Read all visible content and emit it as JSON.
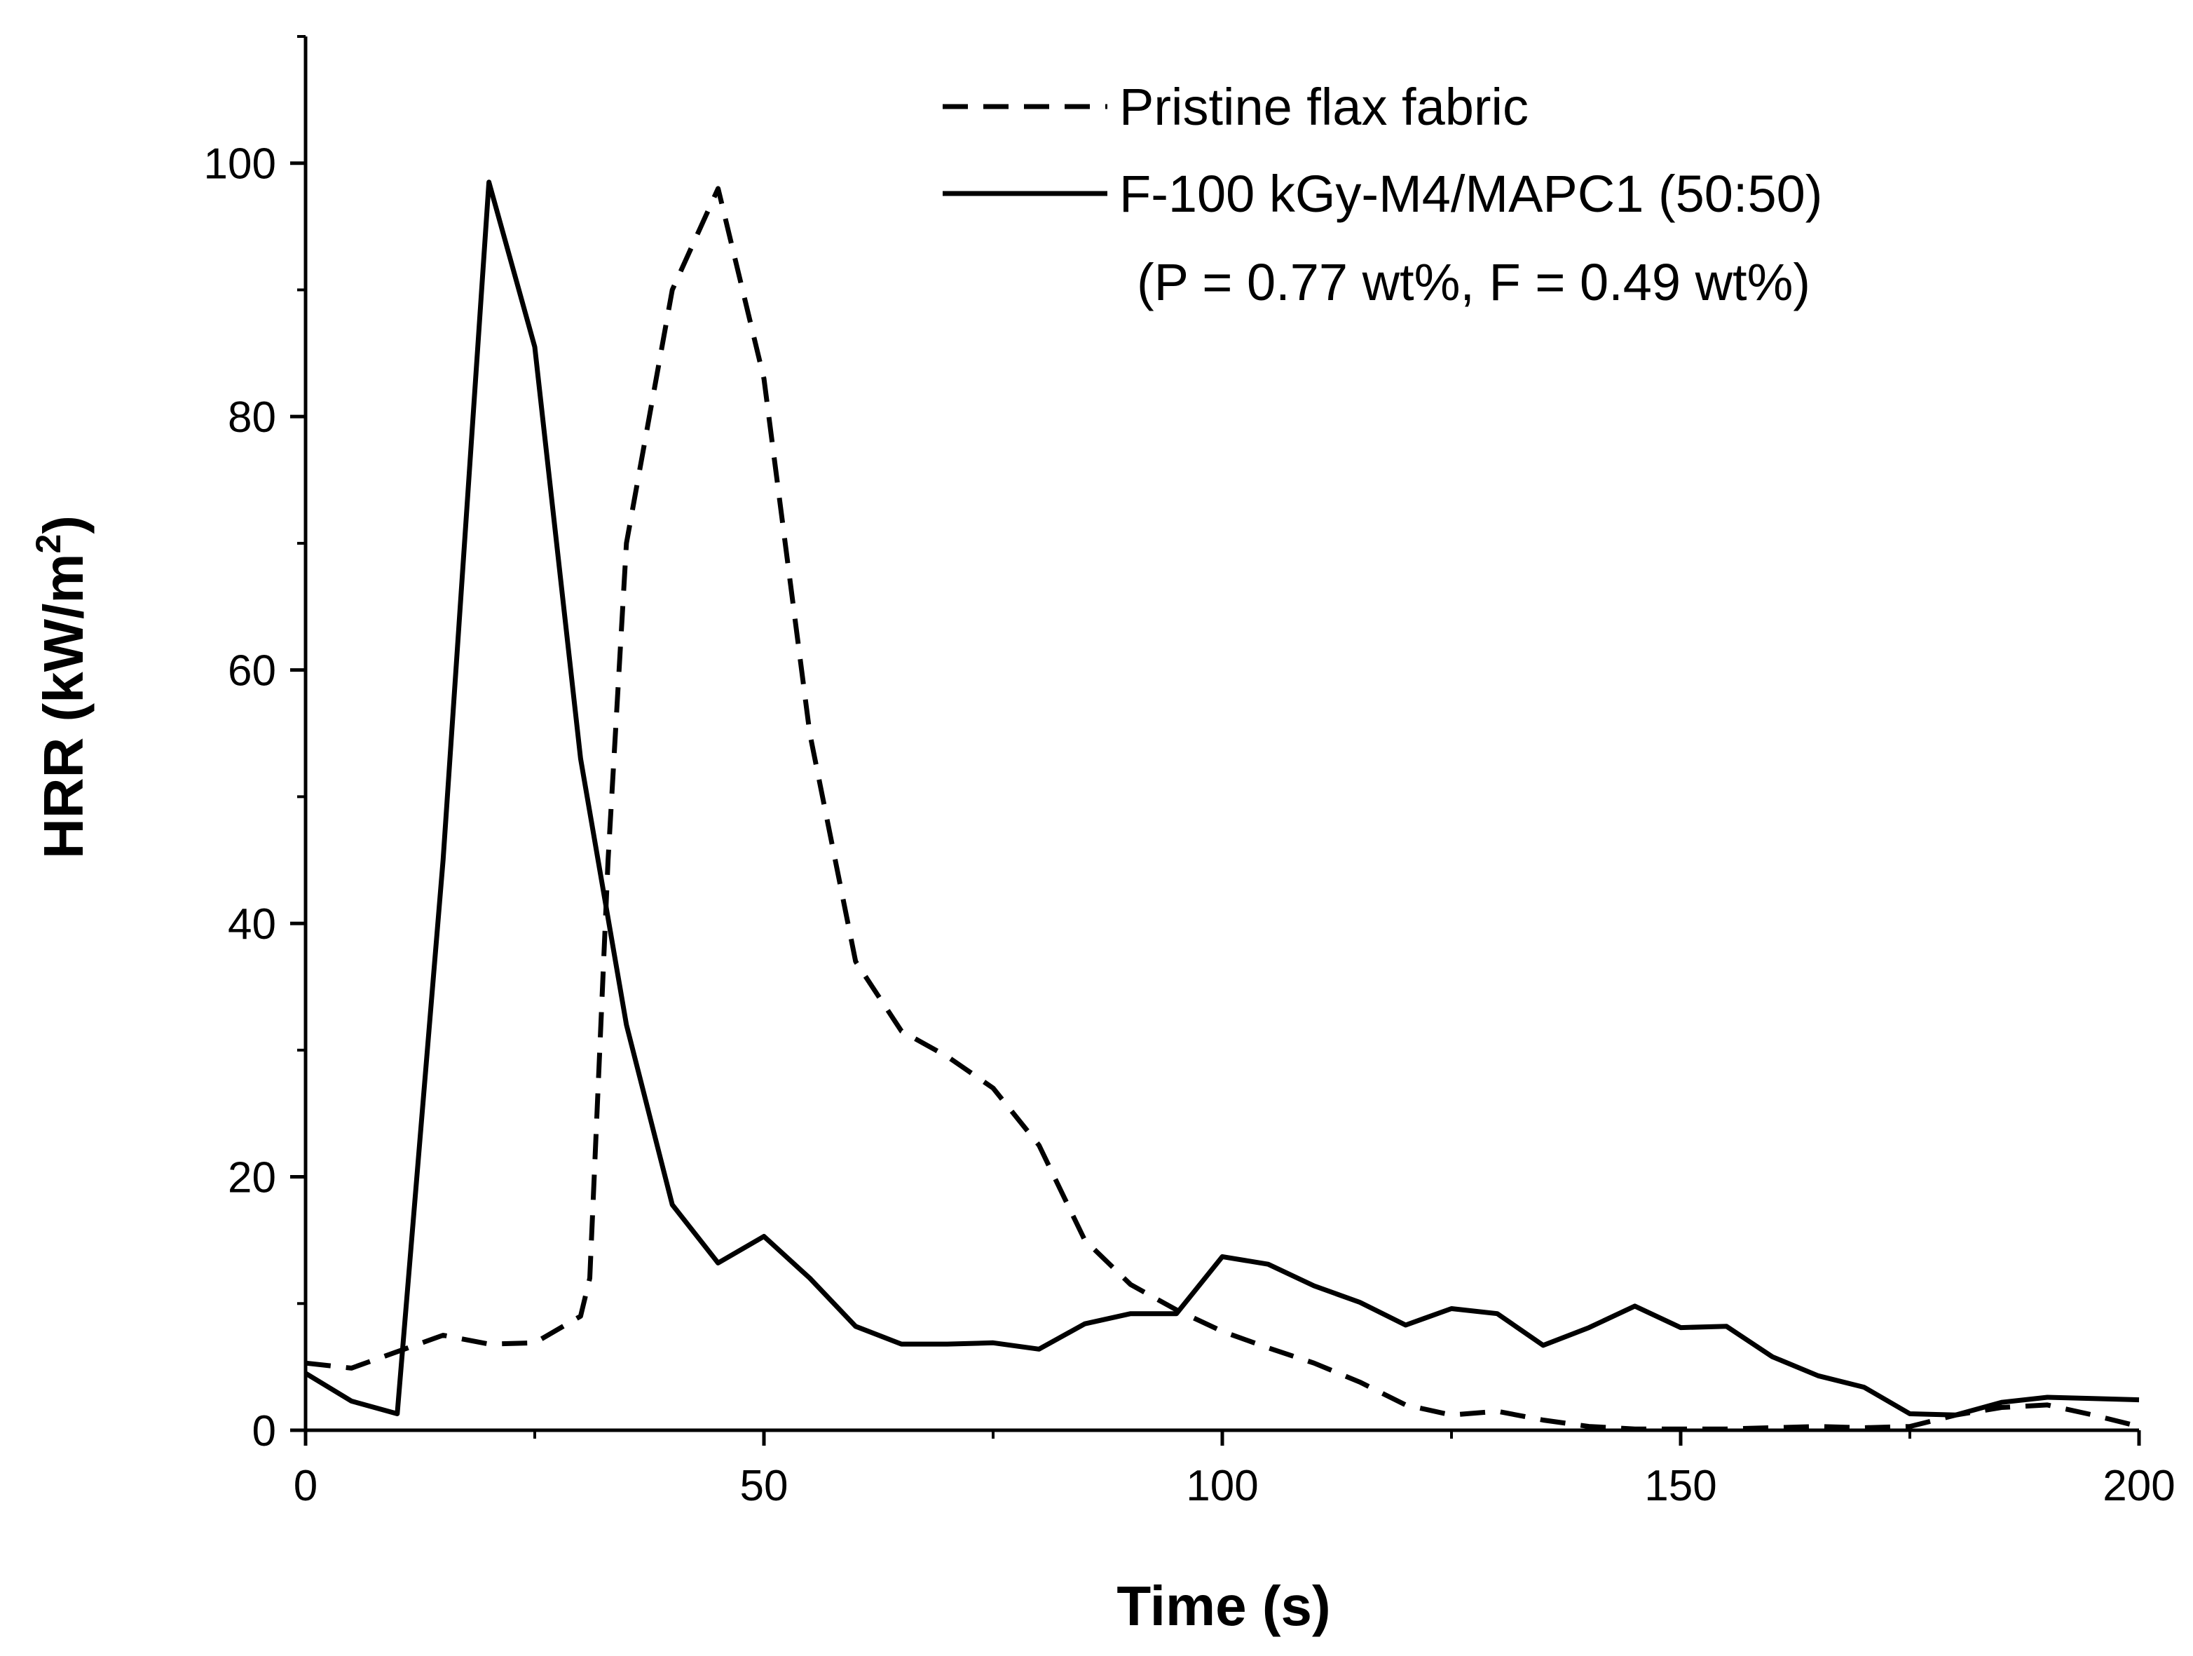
{
  "chart_data": {
    "type": "line",
    "title": "",
    "xlabel": "Time (s)",
    "ylabel": "HRR (kW/m",
    "ylabel_sup": "2",
    "ylabel_close": ")",
    "xlim": [
      0,
      200
    ],
    "ylim": [
      0,
      110
    ],
    "xticks": [
      "0",
      "50",
      "100",
      "150",
      "200"
    ],
    "yticks": [
      "0",
      "20",
      "40",
      "60",
      "80",
      "100"
    ],
    "grid": false,
    "legend_position": "top-right",
    "legend_subtitle": "(P = 0.77 wt%, F = 0.49 wt%)",
    "series": [
      {
        "name": "Pristine flax fabric",
        "style": "dashed",
        "color": "#000000",
        "x": [
          0,
          5,
          10,
          15,
          20,
          25,
          30,
          31,
          33,
          35,
          40,
          45,
          50,
          55,
          60,
          65,
          70,
          75,
          80,
          85,
          90,
          95,
          100,
          105,
          110,
          115,
          120,
          125,
          130,
          135,
          140,
          145,
          150,
          155,
          160,
          165,
          170,
          175,
          180,
          185,
          190,
          195,
          200
        ],
        "y": [
          5.3,
          4.9,
          6.2,
          7.5,
          6.8,
          6.9,
          9.0,
          12.0,
          45.0,
          70.0,
          90.0,
          98.0,
          83.0,
          55.0,
          37.0,
          31.5,
          29.5,
          27.0,
          22.5,
          15.0,
          11.5,
          9.5,
          7.8,
          6.5,
          5.3,
          3.8,
          2.0,
          1.2,
          1.5,
          0.8,
          0.3,
          0.1,
          0.1,
          0.1,
          0.2,
          0.3,
          0.2,
          0.3,
          1.2,
          1.8,
          2.0,
          1.2,
          0.3
        ]
      },
      {
        "name": "F-100 kGy-M4/MAPC1 (50:50)",
        "style": "solid",
        "color": "#000000",
        "x": [
          0,
          5,
          10,
          15,
          20,
          25,
          30,
          35,
          40,
          45,
          50,
          55,
          60,
          65,
          70,
          75,
          80,
          85,
          90,
          95,
          100,
          105,
          110,
          115,
          120,
          125,
          130,
          135,
          140,
          145,
          150,
          155,
          160,
          165,
          170,
          175,
          180,
          185,
          190,
          195,
          200
        ],
        "y": [
          4.5,
          2.3,
          1.3,
          45.0,
          98.5,
          85.5,
          53.0,
          32.0,
          17.8,
          13.2,
          15.3,
          12.0,
          8.2,
          6.8,
          6.8,
          6.9,
          6.4,
          8.4,
          9.2,
          9.2,
          13.7,
          13.1,
          11.4,
          10.1,
          8.3,
          9.6,
          9.2,
          6.7,
          8.1,
          9.8,
          8.1,
          8.2,
          5.8,
          4.3,
          3.4,
          1.3,
          1.2,
          2.2,
          2.6,
          2.5,
          2.4
        ]
      }
    ]
  }
}
